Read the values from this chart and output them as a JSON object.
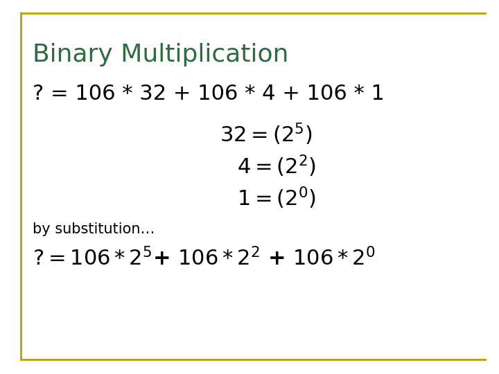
{
  "title": "Binary Multiplication",
  "title_color": "#2E6B3E",
  "title_fontsize": 26,
  "background_color": "#FFFFFF",
  "border_color": "#B8A000",
  "text_color": "#000000",
  "body_fontsize": 22,
  "subst_fontsize": 15,
  "final_fontsize": 22
}
